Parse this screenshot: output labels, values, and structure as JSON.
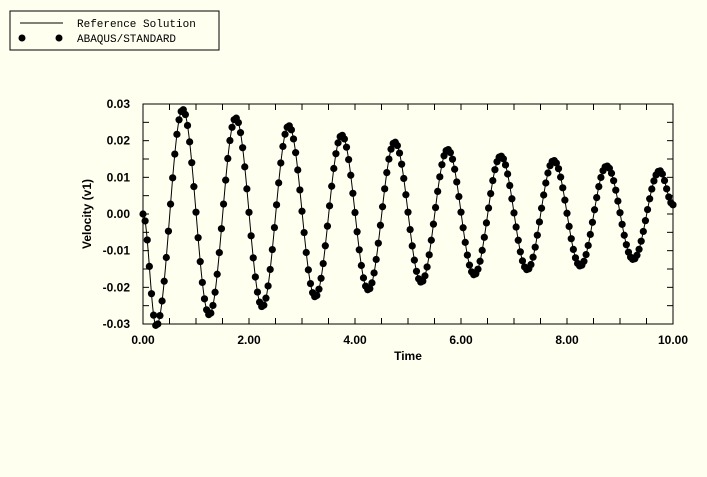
{
  "colors": {
    "background": "#fffff0",
    "ink": "#000000"
  },
  "chart_data": {
    "type": "line",
    "title": "",
    "xlabel": "Time",
    "ylabel": "Velocity (v1)",
    "xlim": [
      0,
      10
    ],
    "ylim": [
      -0.03,
      0.03
    ],
    "grid": false,
    "legend_position": "top-left",
    "x_ticks": [
      0,
      2,
      4,
      6,
      8,
      10
    ],
    "x_tick_labels": [
      "0.00",
      "2.00",
      "4.00",
      "6.00",
      "8.00",
      "10.00"
    ],
    "y_ticks": [
      0.03,
      0.02,
      0.01,
      0.0,
      -0.01,
      -0.02,
      -0.03
    ],
    "y_tick_labels": [
      "0.03",
      "0.02",
      "0.01",
      "0.00",
      "-0.01",
      "-0.02",
      "-0.03"
    ],
    "series": [
      {
        "name": "Reference Solution",
        "style": "line",
        "x": [
          0,
          0.25,
          0.75,
          1.25,
          1.75,
          2.25,
          2.75,
          3.25,
          3.75,
          4.25,
          4.75,
          5.25,
          5.75,
          6.25,
          6.75,
          7.25,
          7.75,
          8.25,
          8.75,
          9.25,
          9.75,
          10
        ],
        "y": [
          0,
          -0.0305,
          0.0285,
          -0.0275,
          0.0262,
          -0.0253,
          0.0241,
          -0.0226,
          0.0215,
          -0.0207,
          0.0196,
          -0.0186,
          0.0176,
          -0.0166,
          0.0158,
          -0.0152,
          0.0146,
          -0.0142,
          0.0131,
          -0.0124,
          0.0118,
          0.0025
        ]
      },
      {
        "name": "ABAQUS/STANDARD",
        "style": "markers",
        "x": [
          0,
          0.25,
          0.75,
          1.25,
          1.75,
          2.25,
          2.75,
          3.25,
          3.75,
          4.25,
          4.75,
          5.25,
          5.75,
          6.25,
          6.75,
          7.25,
          7.75,
          8.25,
          8.75,
          9.25,
          9.75,
          10
        ],
        "y": [
          0,
          -0.0305,
          0.0285,
          -0.0275,
          0.0262,
          -0.0253,
          0.0241,
          -0.0226,
          0.0215,
          -0.0207,
          0.0196,
          -0.0186,
          0.0176,
          -0.0166,
          0.0158,
          -0.0152,
          0.0146,
          -0.0142,
          0.0131,
          -0.0124,
          0.0118,
          0.0025
        ]
      }
    ]
  }
}
